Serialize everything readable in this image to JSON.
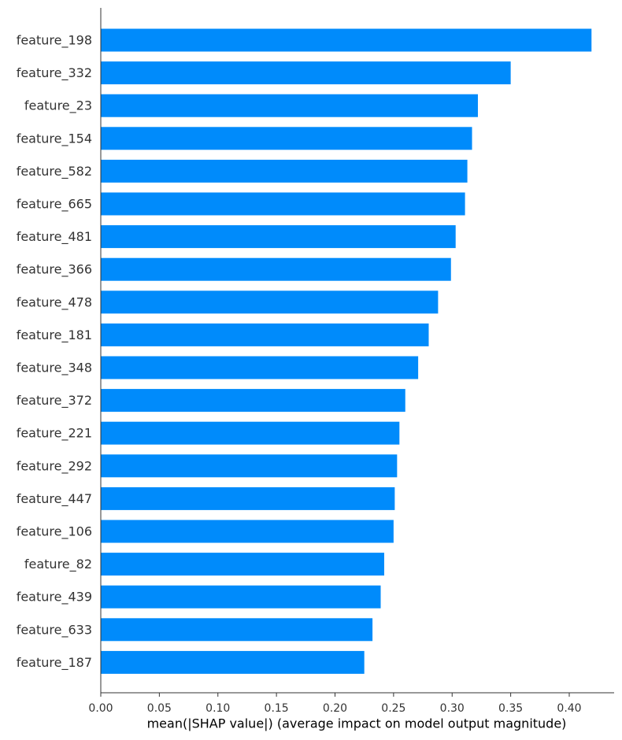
{
  "chart_data": {
    "type": "bar",
    "orientation": "horizontal",
    "title": "",
    "xlabel": "mean(|SHAP value|) (average impact on model output magnitude)",
    "ylabel": "",
    "xlim": [
      0,
      0.44
    ],
    "xticks": [
      0.0,
      0.05,
      0.1,
      0.15,
      0.2,
      0.25,
      0.3,
      0.35,
      0.4
    ],
    "xtick_labels": [
      "0.00",
      "0.05",
      "0.10",
      "0.15",
      "0.20",
      "0.25",
      "0.30",
      "0.35",
      "0.40"
    ],
    "grid": false,
    "legend": "none",
    "bar_color": "#008bfb",
    "categories": [
      "feature_198",
      "feature_332",
      "feature_23",
      "feature_154",
      "feature_582",
      "feature_665",
      "feature_481",
      "feature_366",
      "feature_478",
      "feature_181",
      "feature_348",
      "feature_372",
      "feature_221",
      "feature_292",
      "feature_447",
      "feature_106",
      "feature_82",
      "feature_439",
      "feature_633",
      "feature_187"
    ],
    "values": [
      0.419,
      0.35,
      0.322,
      0.317,
      0.313,
      0.311,
      0.303,
      0.299,
      0.288,
      0.28,
      0.271,
      0.26,
      0.255,
      0.253,
      0.251,
      0.25,
      0.242,
      0.239,
      0.232,
      0.225
    ]
  }
}
